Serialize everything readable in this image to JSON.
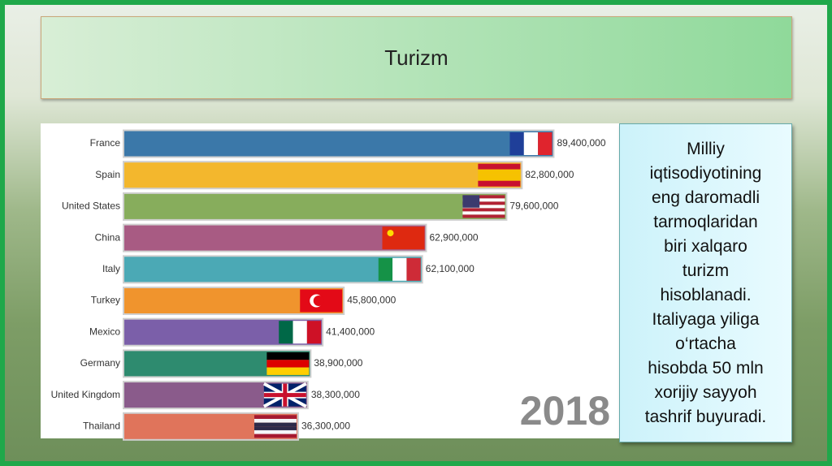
{
  "slide": {
    "title": "Turizm",
    "text": [
      "Milliy",
      "iqtisodiyotining",
      "eng daromadli",
      "tarmoqlaridan",
      "biri xalqaro",
      "turizm",
      "hisoblanadi.",
      "Italiyaga yiliga",
      "o‘rtacha",
      "hisobda 50 mln",
      "xorijiy sayyoh",
      "tashrif buyuradi."
    ]
  },
  "chart_data": {
    "type": "bar",
    "orientation": "horizontal",
    "categories": [
      "France",
      "Spain",
      "United States",
      "China",
      "Italy",
      "Turkey",
      "Mexico",
      "Germany",
      "United Kingdom",
      "Thailand"
    ],
    "values": [
      89400000,
      82800000,
      79600000,
      62900000,
      62100000,
      45800000,
      41400000,
      38900000,
      38300000,
      36300000
    ],
    "value_labels": [
      "89,400,000",
      "82,800,000",
      "79,600,000",
      "62,900,000",
      "62,100,000",
      "45,800,000",
      "41,400,000",
      "38,900,000",
      "38,300,000",
      "36,300,000"
    ],
    "colors": [
      "#3b78a9",
      "#f3b72d",
      "#87ad5c",
      "#a85b83",
      "#4ba9b5",
      "#f0942d",
      "#7b5fa9",
      "#2e8b6f",
      "#8a5b8b",
      "#e0745b"
    ],
    "xlim": [
      0,
      90000000
    ],
    "annotation": "2018"
  }
}
